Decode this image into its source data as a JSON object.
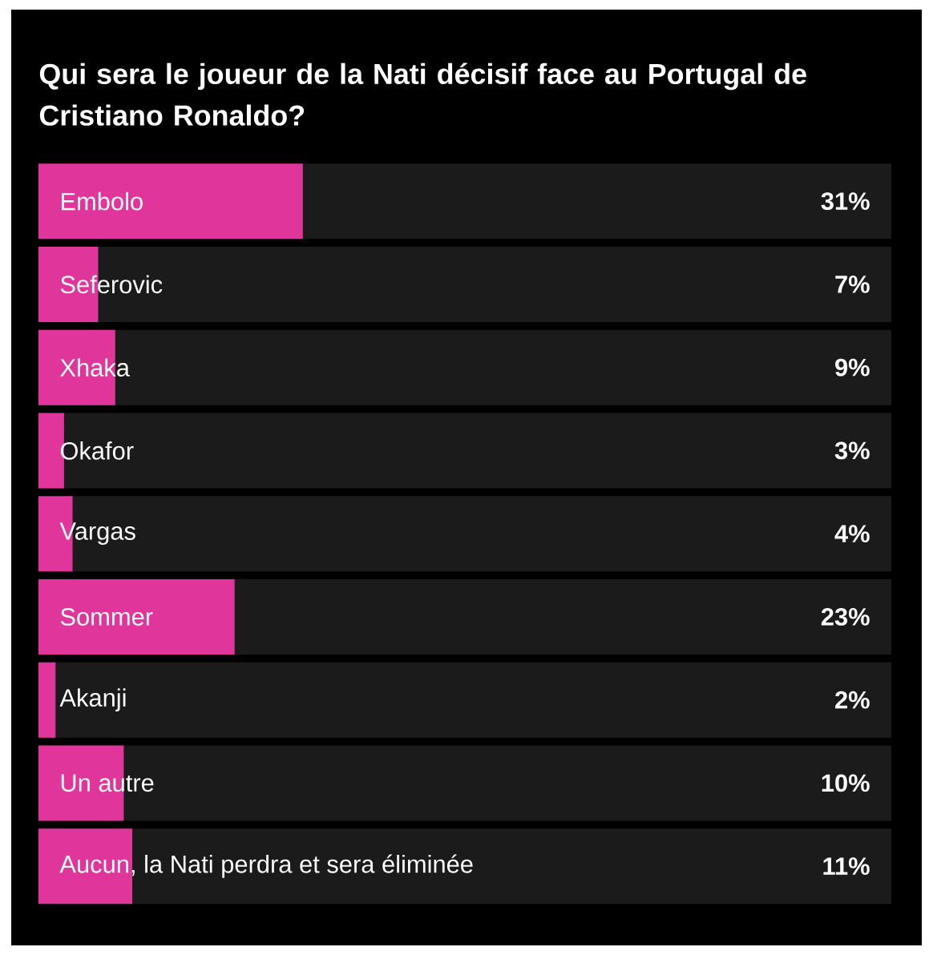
{
  "chart_data": {
    "type": "bar",
    "orientation": "horizontal",
    "title": "Qui sera le joueur de la Nati décisif face au Portugal de Cristiano Ronaldo?",
    "categories": [
      "Embolo",
      "Seferovic",
      "Xhaka",
      "Okafor",
      "Vargas",
      "Sommer",
      "Akanji",
      "Un autre",
      "Aucun, la Nati perdra et sera éliminée"
    ],
    "series": [
      {
        "color": "#e0359a",
        "values": [
          31,
          7,
          9,
          3,
          4,
          23,
          2,
          10,
          11
        ],
        "value_labels": [
          "31%",
          "7%",
          "9%",
          "3%",
          "4%",
          "23%",
          "2%",
          "10%",
          "11%"
        ]
      }
    ],
    "xlim": [
      0,
      100
    ],
    "tick_labels": "y"
  }
}
